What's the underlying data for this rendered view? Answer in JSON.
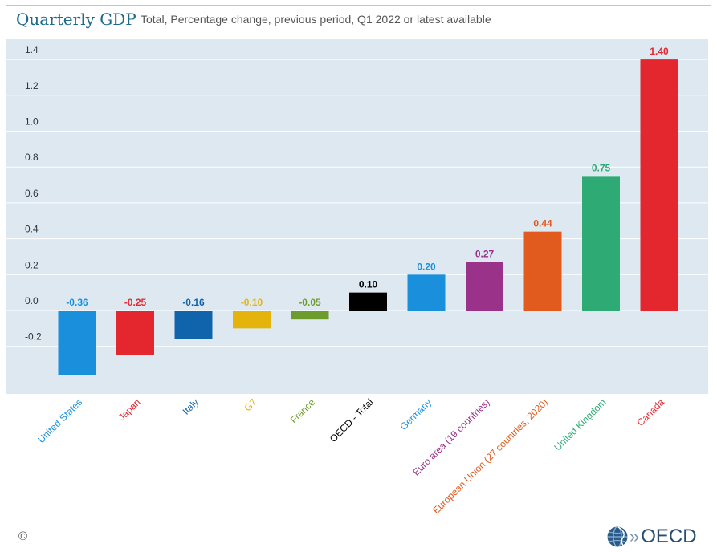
{
  "header": {
    "title": "Quarterly GDP",
    "subtitle": "Total, Percentage change, previous period, Q1 2022 or latest available"
  },
  "footer": {
    "copyright": "©",
    "logo_text": "OECD"
  },
  "chart_data": {
    "type": "bar",
    "title": "Quarterly GDP",
    "subtitle": "Total, Percentage change, previous period, Q1 2022 or latest available",
    "categories": [
      "United States",
      "Japan",
      "Italy",
      "G7",
      "France",
      "OECD - Total",
      "Germany",
      "Euro area (19 countries)",
      "European Union (27 countries, 2020)",
      "United Kingdom",
      "Canada"
    ],
    "values": [
      -0.36,
      -0.25,
      -0.16,
      -0.1,
      -0.05,
      0.1,
      0.2,
      0.27,
      0.44,
      0.75,
      1.4
    ],
    "value_labels": [
      "-0.36",
      "-0.25",
      "-0.16",
      "-0.10",
      "-0.05",
      "0.10",
      "0.20",
      "0.27",
      "0.44",
      "0.75",
      "1.40"
    ],
    "colors": [
      "#1a8fdc",
      "#e4272f",
      "#1064ac",
      "#e5b40c",
      "#6c9d2c",
      "#000000",
      "#1a8fdc",
      "#9a3289",
      "#e15a1e",
      "#2eab74",
      "#e4272f"
    ],
    "yticks": [
      "1.4",
      "1.2",
      "1.0",
      "0.8",
      "0.6",
      "0.4",
      "0.2",
      "0.0",
      "-0.2"
    ],
    "ytick_values": [
      1.4,
      1.2,
      1.0,
      0.8,
      0.6,
      0.4,
      0.2,
      0.0,
      -0.2
    ],
    "ylim": [
      -0.47,
      1.49
    ],
    "grid": true,
    "legend": "none",
    "plot_background": "#dde8f0"
  }
}
